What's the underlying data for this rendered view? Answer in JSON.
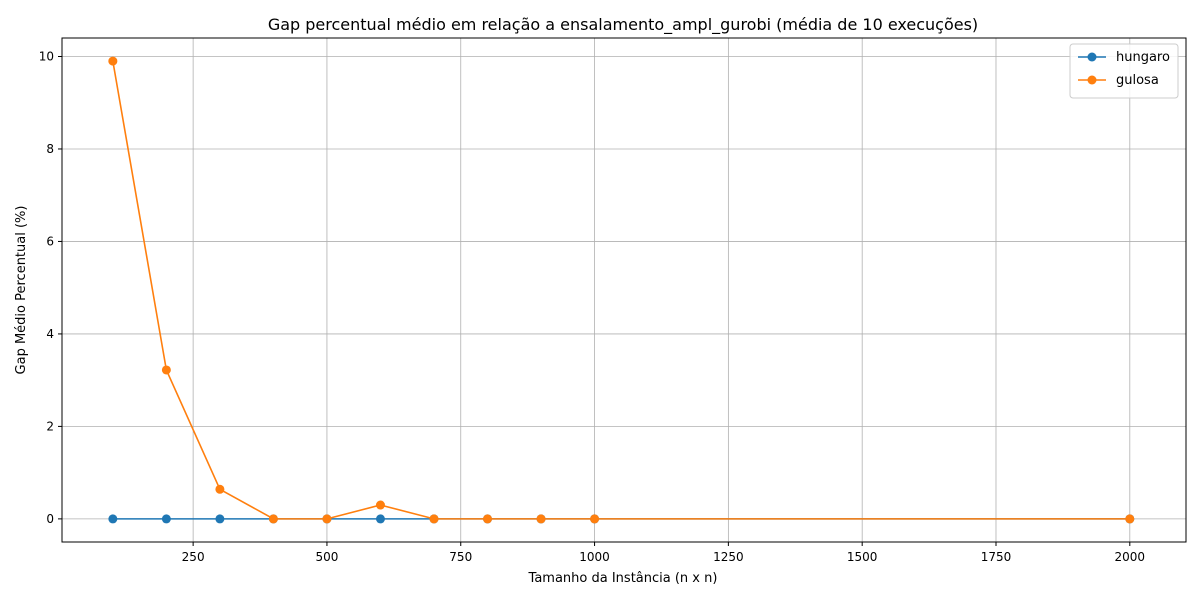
{
  "chart_data": {
    "type": "line",
    "title": "Gap percentual médio em relação a ensalamento_ampl_gurobi (média de 10 execuções)",
    "xlabel": "Tamanho da Instância (n x n)",
    "ylabel": "Gap Médio Percentual (%)",
    "xlim": [
      5,
      2105
    ],
    "ylim": [
      -0.5,
      10.4
    ],
    "xticks": [
      250,
      500,
      750,
      1000,
      1250,
      1500,
      1750,
      2000
    ],
    "yticks": [
      0,
      2,
      4,
      6,
      8,
      10
    ],
    "grid": true,
    "legend_position": "top-right",
    "series": [
      {
        "name": "hungaro",
        "color": "#1f77b4",
        "x": [
          100,
          200,
          300,
          400,
          500,
          600,
          700,
          800,
          900,
          1000,
          2000
        ],
        "y": [
          0,
          0,
          0,
          0,
          0,
          0,
          0,
          0,
          0,
          0,
          0
        ]
      },
      {
        "name": "gulosa",
        "color": "#ff7f0e",
        "x": [
          100,
          200,
          300,
          400,
          500,
          600,
          700,
          800,
          900,
          1000,
          2000
        ],
        "y": [
          9.9,
          3.22,
          0.64,
          0,
          0,
          0.3,
          0,
          0,
          0,
          0,
          0
        ]
      }
    ]
  }
}
